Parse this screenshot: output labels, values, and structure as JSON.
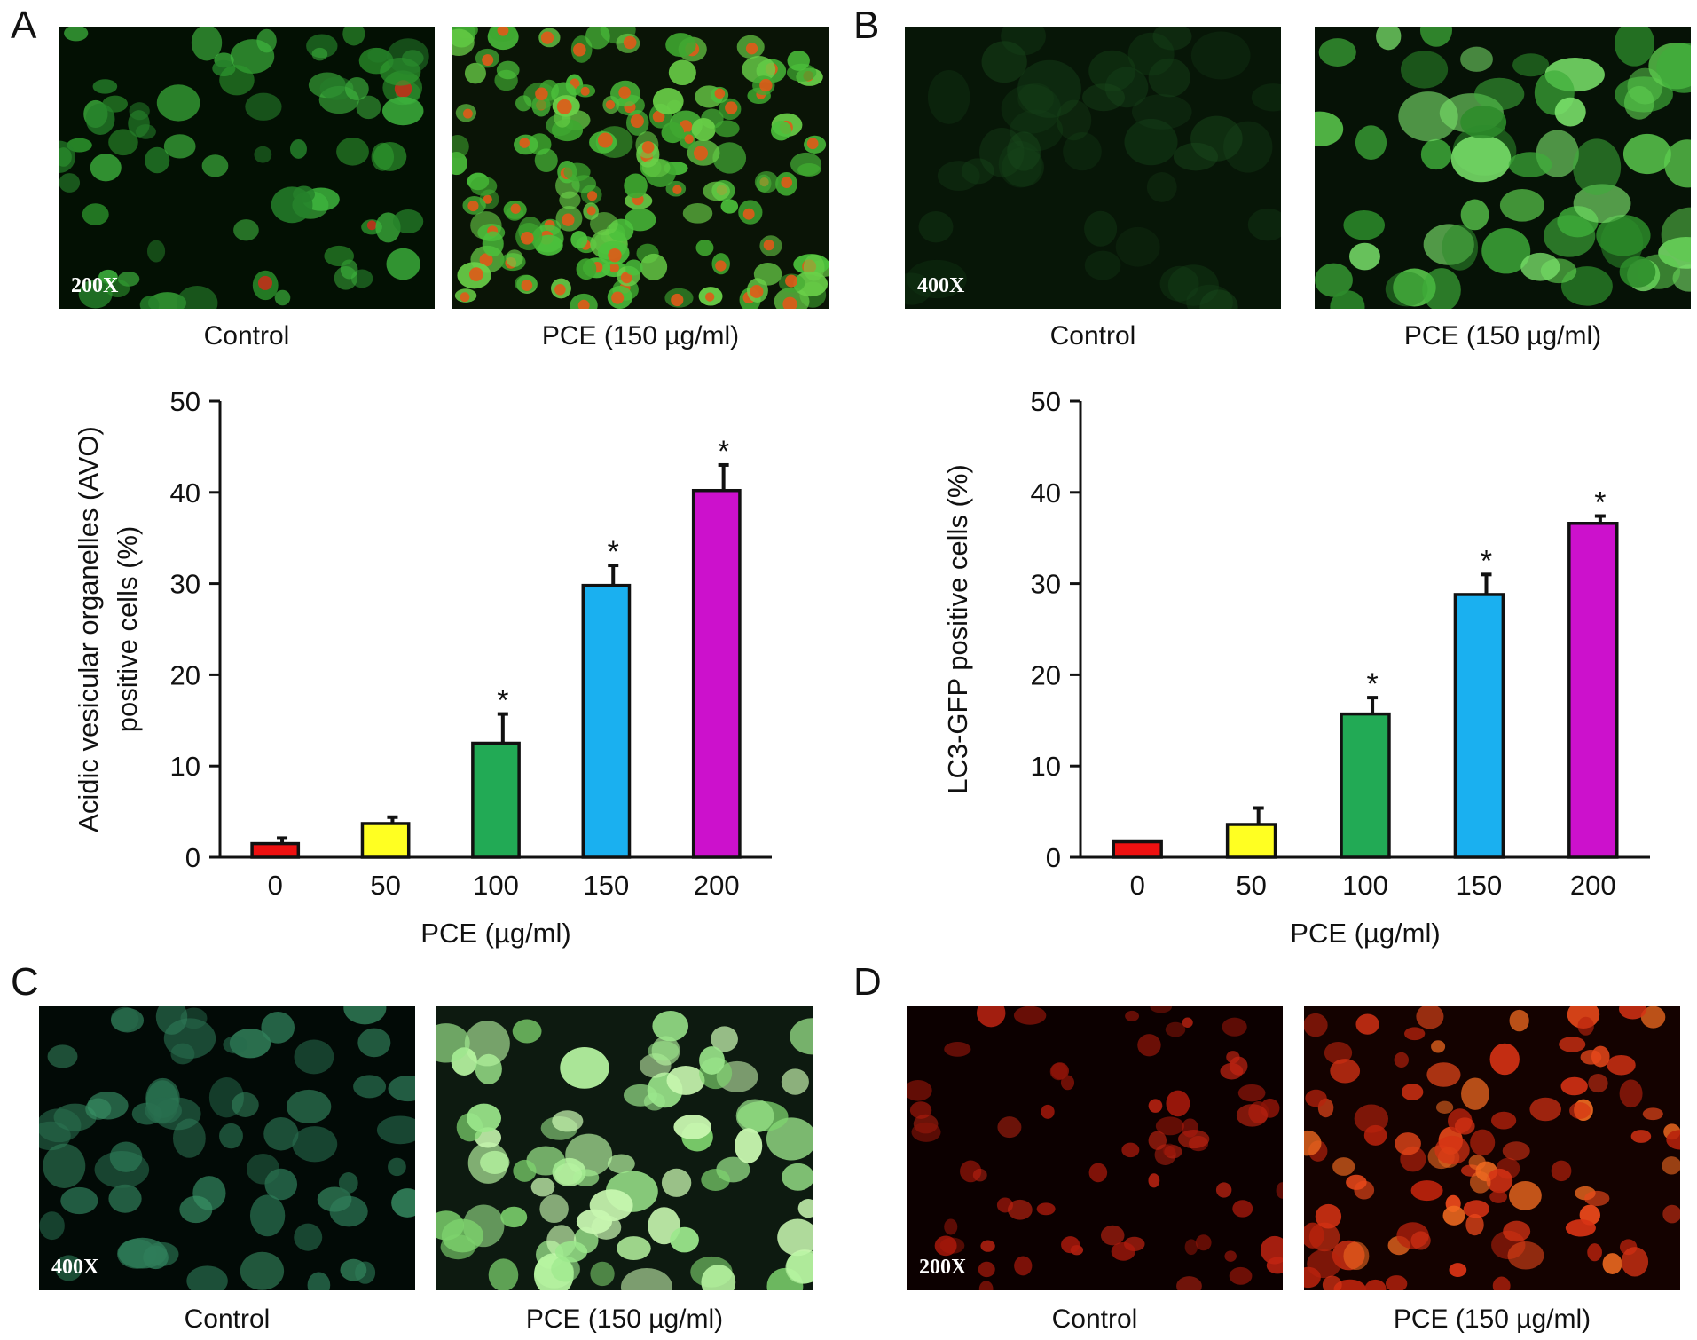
{
  "figure": {
    "panels": [
      {
        "letter": "A",
        "images": [
          {
            "caption": "Control",
            "magnification": "200X",
            "tint": "green-red-sparse"
          },
          {
            "caption": "PCE (150 µg/ml)",
            "magnification": "",
            "tint": "green-red-dense"
          }
        ]
      },
      {
        "letter": "B",
        "images": [
          {
            "caption": "Control",
            "magnification": "400X",
            "tint": "green-dim"
          },
          {
            "caption": "PCE (150 µg/ml)",
            "magnification": "",
            "tint": "green-bright"
          }
        ]
      },
      {
        "letter": "C",
        "images": [
          {
            "caption": "Control",
            "magnification": "400X",
            "tint": "teal-dim"
          },
          {
            "caption": "PCE (150 µg/ml)",
            "magnification": "",
            "tint": "lime-bright"
          }
        ]
      },
      {
        "letter": "D",
        "images": [
          {
            "caption": "Control",
            "magnification": "200X",
            "tint": "red-dim"
          },
          {
            "caption": "PCE (150 µg/ml)",
            "magnification": "",
            "tint": "red-bright"
          }
        ]
      }
    ]
  },
  "chart_data": [
    {
      "type": "bar",
      "panel": "A",
      "categories": [
        "0",
        "50",
        "100",
        "150",
        "200"
      ],
      "values": [
        1.5,
        3.7,
        12.5,
        29.8,
        40.2
      ],
      "error": [
        0.6,
        0.7,
        3.2,
        2.2,
        2.8
      ],
      "significance": [
        "",
        "",
        "*",
        "*",
        "*"
      ],
      "bar_colors": [
        "#ee1111",
        "#ffff22",
        "#22aa55",
        "#1ab0f0",
        "#cc11cc"
      ],
      "xlabel": "PCE (µg/ml)",
      "ylabel": "Acidic vesicular organelles (AVO) positive cells (%)",
      "ylim": [
        0,
        50
      ],
      "yticks": [
        "0",
        "10",
        "20",
        "30",
        "40",
        "50"
      ],
      "grid": false
    },
    {
      "type": "bar",
      "panel": "B",
      "categories": [
        "0",
        "50",
        "100",
        "150",
        "200"
      ],
      "values": [
        1.7,
        3.6,
        15.7,
        28.8,
        36.6
      ],
      "error": [
        0.0,
        1.8,
        1.8,
        2.2,
        0.8
      ],
      "significance": [
        "",
        "",
        "*",
        "*",
        "*"
      ],
      "bar_colors": [
        "#ee1111",
        "#ffff22",
        "#22aa55",
        "#1ab0f0",
        "#cc11cc"
      ],
      "xlabel": "PCE (µg/ml)",
      "ylabel": "LC3-GFP positive cells (%)",
      "ylim": [
        0,
        50
      ],
      "yticks": [
        "0",
        "10",
        "20",
        "30",
        "40",
        "50"
      ],
      "grid": false
    }
  ]
}
